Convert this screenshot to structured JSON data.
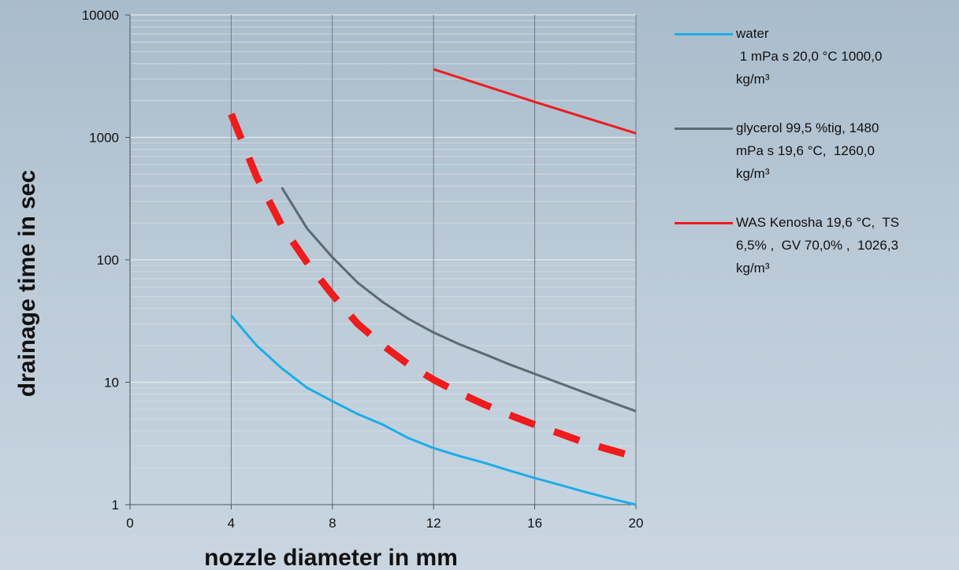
{
  "chart_data": {
    "type": "line",
    "title": "",
    "xlabel": "nozzle diameter in mm",
    "ylabel": "drainage time in sec",
    "xlim": [
      0,
      20
    ],
    "x_ticks": [
      "0",
      "4",
      "8",
      "12",
      "16",
      "20"
    ],
    "ylim": [
      1,
      10000
    ],
    "yscale": "log",
    "y_ticks": [
      "1",
      "10",
      "100",
      "1000",
      "10000"
    ],
    "grid": true,
    "legend_position": "right",
    "series": [
      {
        "name": "water\n 1 mPa s 20,0 °C 1000,0 kg/m³",
        "color": "#1aaee8",
        "style": "solid",
        "x": [
          4,
          5,
          6,
          7,
          8,
          9,
          10,
          11,
          12,
          13,
          14,
          15,
          16,
          17,
          18,
          19,
          20
        ],
        "y": [
          35,
          20,
          13,
          9,
          7,
          5.5,
          4.5,
          3.5,
          2.9,
          2.5,
          2.2,
          1.9,
          1.65,
          1.45,
          1.27,
          1.12,
          1.0
        ]
      },
      {
        "name": "glycerol 99,5 %tig, 1480 mPa s 19,6 °C,  1260,0 kg/m³",
        "color": "#5a6b72",
        "style": "solid",
        "x": [
          6,
          7,
          8,
          9,
          10,
          11,
          12,
          13,
          14,
          15,
          16,
          17,
          18,
          19,
          20
        ],
        "y": [
          390,
          180,
          105,
          65,
          45,
          33,
          25.5,
          20.5,
          17,
          14,
          11.7,
          9.8,
          8.2,
          6.9,
          5.8
        ]
      },
      {
        "name": "WAS Kenosha 19,6 °C,  TS 6,5% ,  GV 70,0% ,  1026,3 kg/m³",
        "color": "#ee1c1c",
        "style": "dashed",
        "x": [
          4,
          5,
          6,
          7,
          8,
          9,
          10,
          11,
          12,
          13,
          14,
          15,
          16,
          17,
          18,
          19,
          20
        ],
        "y": [
          1550,
          480,
          190,
          95,
          52,
          30,
          20,
          14,
          10.5,
          8.2,
          6.6,
          5.4,
          4.5,
          3.8,
          3.2,
          2.8,
          2.45
        ]
      },
      {
        "name": "",
        "color": "#ee1c1c",
        "style": "solid",
        "x": [
          12,
          14,
          16,
          18,
          20
        ],
        "y": [
          3600,
          2650,
          1950,
          1450,
          1080
        ]
      }
    ]
  },
  "legend": [
    {
      "label": "water\n 1 mPa s 20,0 °C 1000,0\nkg/m³",
      "color": "#1aaee8"
    },
    {
      "label": "glycerol 99,5 %tig, 1480\nmPa s 19,6 °C,  1260,0\nkg/m³",
      "color": "#5a6b72"
    },
    {
      "label": "WAS Kenosha 19,6 °C,  TS\n6,5% ,  GV 70,0% ,  1026,3\nkg/m³",
      "color": "#ee1c1c"
    }
  ]
}
